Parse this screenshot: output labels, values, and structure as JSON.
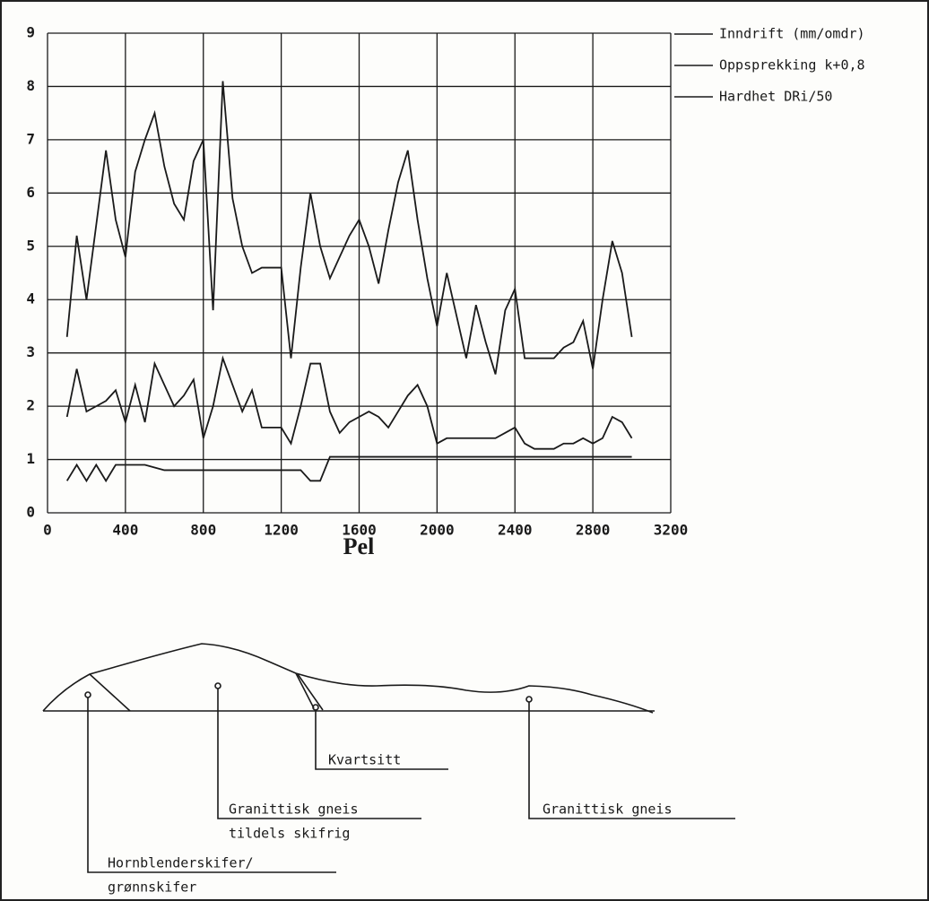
{
  "chart_data": {
    "type": "line",
    "xlabel": "Pel",
    "x": [
      100,
      150,
      200,
      250,
      300,
      350,
      400,
      450,
      500,
      550,
      600,
      650,
      700,
      750,
      800,
      850,
      900,
      950,
      1000,
      1050,
      1100,
      1150,
      1200,
      1250,
      1300,
      1350,
      1400,
      1450,
      1500,
      1550,
      1600,
      1650,
      1700,
      1750,
      1800,
      1850,
      1900,
      1950,
      2000,
      2050,
      2100,
      2150,
      2200,
      2250,
      2300,
      2350,
      2400,
      2450,
      2500,
      2550,
      2600,
      2650,
      2700,
      2750,
      2800,
      2850,
      2900,
      2950,
      3000
    ],
    "series": [
      {
        "name": "Inndrift (mm/omdr)",
        "color": "#1a1a1a",
        "values": [
          3.3,
          5.2,
          4.0,
          5.4,
          6.8,
          5.5,
          4.8,
          6.4,
          7.0,
          7.5,
          6.5,
          5.8,
          5.5,
          6.6,
          7.0,
          3.8,
          8.1,
          5.9,
          5.0,
          4.5,
          4.6,
          4.6,
          4.6,
          2.9,
          4.6,
          6.0,
          5.0,
          4.4,
          4.8,
          5.2,
          5.5,
          5.0,
          4.3,
          5.3,
          6.2,
          6.8,
          5.5,
          4.4,
          3.5,
          4.5,
          3.7,
          2.9,
          3.9,
          3.2,
          2.6,
          3.8,
          4.2,
          2.9,
          2.9,
          2.9,
          2.9,
          3.1,
          3.2,
          3.6,
          2.7,
          4.0,
          5.1,
          4.5,
          3.3
        ]
      },
      {
        "name": "Oppsprekking k+0,8",
        "color": "#1a1a1a",
        "values": [
          1.8,
          2.7,
          1.9,
          2.0,
          2.1,
          2.3,
          1.7,
          2.4,
          1.7,
          2.8,
          2.4,
          2.0,
          2.2,
          2.5,
          1.4,
          2.0,
          2.9,
          2.4,
          1.9,
          2.3,
          1.6,
          1.6,
          1.6,
          1.3,
          2.0,
          2.8,
          2.8,
          1.9,
          1.5,
          1.7,
          1.8,
          1.9,
          1.8,
          1.6,
          1.9,
          2.2,
          2.4,
          2.0,
          1.3,
          1.4,
          1.4,
          1.4,
          1.4,
          1.4,
          1.4,
          1.5,
          1.6,
          1.3,
          1.2,
          1.2,
          1.2,
          1.3,
          1.3,
          1.4,
          1.3,
          1.4,
          1.8,
          1.7,
          1.4
        ]
      },
      {
        "name": "Hardhet DRi/50",
        "color": "#1a1a1a",
        "values": [
          0.6,
          0.9,
          0.6,
          0.9,
          0.6,
          0.9,
          0.9,
          0.9,
          0.9,
          0.85,
          0.8,
          0.8,
          0.8,
          0.8,
          0.8,
          0.8,
          0.8,
          0.8,
          0.8,
          0.8,
          0.8,
          0.8,
          0.8,
          0.8,
          0.8,
          0.6,
          0.6,
          1.05,
          1.05,
          1.05,
          1.05,
          1.05,
          1.05,
          1.05,
          1.05,
          1.05,
          1.05,
          1.05,
          1.05,
          1.05,
          1.05,
          1.05,
          1.05,
          1.05,
          1.05,
          1.05,
          1.05,
          1.05,
          1.05,
          1.05,
          1.05,
          1.05,
          1.05,
          1.05,
          1.05,
          1.05,
          1.05,
          1.05,
          1.05
        ]
      }
    ],
    "xlim": [
      0,
      3200
    ],
    "xticks": [
      0,
      400,
      800,
      1200,
      1600,
      2000,
      2400,
      2800,
      3200
    ],
    "ylim": [
      0,
      9
    ],
    "yticks": [
      0,
      1,
      2,
      3,
      4,
      5,
      6,
      7,
      8,
      9
    ],
    "grid": true,
    "legend": "right"
  },
  "profile": {
    "labels": [
      [
        "Kvartsitt"
      ],
      [
        "Granittisk gneis",
        "tildels skifrig"
      ],
      [
        "Granittisk gneis"
      ],
      [
        "Hornblenderskifer/",
        "grønnskifer"
      ]
    ]
  }
}
